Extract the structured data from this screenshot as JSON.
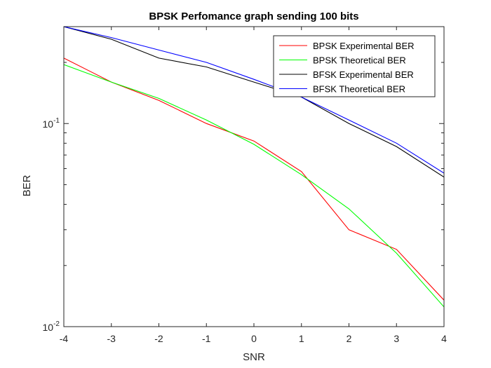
{
  "chart_data": {
    "type": "line",
    "title": "BPSK Perfomance graph sending 100 bits",
    "xlabel": "SNR",
    "ylabel": "BER",
    "xlim": [
      -4,
      4
    ],
    "ylim": [
      0.01,
      0.3
    ],
    "yscale": "log",
    "grid": false,
    "legend_position": "top-right",
    "x": [
      -4,
      -3,
      -2,
      -1,
      0,
      1,
      2,
      3,
      4
    ],
    "x_ticks": [
      -4,
      -3,
      -2,
      -1,
      0,
      1,
      2,
      3,
      4
    ],
    "x_tick_labels": [
      "-4",
      "-3",
      "-2",
      "-1",
      "0",
      "1",
      "2",
      "3",
      "4"
    ],
    "y_major_ticks": [
      {
        "value": 0.01,
        "base": "10",
        "exponent": "-2"
      },
      {
        "value": 0.1,
        "base": "10",
        "exponent": "-1"
      }
    ],
    "series": [
      {
        "name": "BPSK Experimental BER",
        "color": "#ff0000",
        "values": [
          0.21,
          0.16,
          0.13,
          0.1,
          0.082,
          0.058,
          0.03,
          0.024,
          0.0135
        ]
      },
      {
        "name": "BPSK Theoretical BER",
        "color": "#00ff00",
        "values": [
          0.195,
          0.16,
          0.133,
          0.104,
          0.079,
          0.056,
          0.038,
          0.023,
          0.0125
        ]
      },
      {
        "name": "BFSK Experimental BER",
        "color": "#000000",
        "values": [
          0.3,
          0.26,
          0.21,
          0.19,
          0.16,
          0.135,
          0.1,
          0.077,
          0.0545
        ]
      },
      {
        "name": "BFSK Theoretical BER",
        "color": "#0000ff",
        "values": [
          0.3,
          0.265,
          0.23,
          0.2,
          0.165,
          0.135,
          0.104,
          0.08,
          0.057
        ]
      }
    ]
  }
}
